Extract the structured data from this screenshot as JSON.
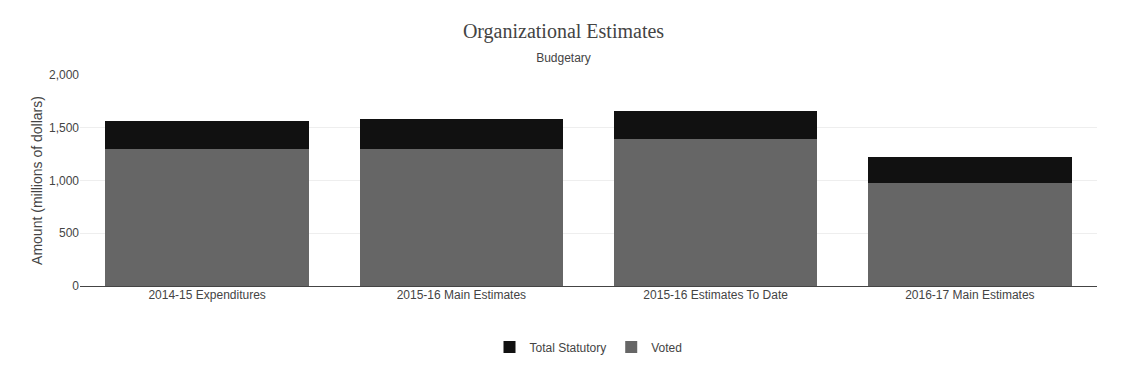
{
  "chart_data": {
    "type": "bar",
    "title": "Organizational Estimates",
    "subtitle": "Budgetary",
    "ylabel": "Amount (millions of dollars)",
    "categories": [
      "2014-15 Expenditures",
      "2015-16 Main Estimates",
      "2015-16 Estimates To Date",
      "2016-17 Main Estimates"
    ],
    "series": [
      {
        "name": "Voted",
        "color": "#666666",
        "values": [
          1300,
          1300,
          1390,
          980
        ]
      },
      {
        "name": "Total Statutory",
        "color": "#111111",
        "values": [
          260,
          280,
          270,
          240
        ]
      }
    ],
    "stacked": true,
    "ylim": [
      0,
      2000
    ],
    "yticks": [
      0,
      500,
      {
        "value": 1000,
        "label": "1,000"
      },
      {
        "value": 1500,
        "label": "1,500"
      },
      {
        "value": 2000,
        "label": "2,000"
      }
    ],
    "grid": true,
    "legend": "bottom"
  }
}
